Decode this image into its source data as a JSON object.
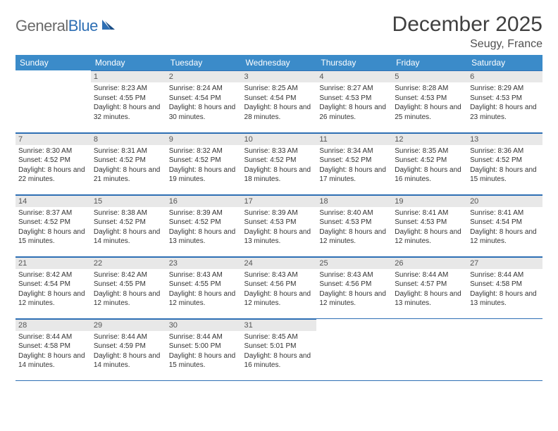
{
  "brand": {
    "part1": "General",
    "part2": "Blue"
  },
  "title": "December 2025",
  "location": "Seugy, France",
  "colors": {
    "header_bg": "#3b8bc9",
    "rule": "#2e6fb4",
    "daynum_bg": "#e8e8e8",
    "text": "#333333",
    "logo_gray": "#6a6a6a",
    "logo_blue": "#2e6fb4"
  },
  "columns": [
    "Sunday",
    "Monday",
    "Tuesday",
    "Wednesday",
    "Thursday",
    "Friday",
    "Saturday"
  ],
  "weeks": [
    [
      null,
      {
        "n": "1",
        "sunrise": "8:23 AM",
        "sunset": "4:55 PM",
        "daylight": "8 hours and 32 minutes."
      },
      {
        "n": "2",
        "sunrise": "8:24 AM",
        "sunset": "4:54 PM",
        "daylight": "8 hours and 30 minutes."
      },
      {
        "n": "3",
        "sunrise": "8:25 AM",
        "sunset": "4:54 PM",
        "daylight": "8 hours and 28 minutes."
      },
      {
        "n": "4",
        "sunrise": "8:27 AM",
        "sunset": "4:53 PM",
        "daylight": "8 hours and 26 minutes."
      },
      {
        "n": "5",
        "sunrise": "8:28 AM",
        "sunset": "4:53 PM",
        "daylight": "8 hours and 25 minutes."
      },
      {
        "n": "6",
        "sunrise": "8:29 AM",
        "sunset": "4:53 PM",
        "daylight": "8 hours and 23 minutes."
      }
    ],
    [
      {
        "n": "7",
        "sunrise": "8:30 AM",
        "sunset": "4:52 PM",
        "daylight": "8 hours and 22 minutes."
      },
      {
        "n": "8",
        "sunrise": "8:31 AM",
        "sunset": "4:52 PM",
        "daylight": "8 hours and 21 minutes."
      },
      {
        "n": "9",
        "sunrise": "8:32 AM",
        "sunset": "4:52 PM",
        "daylight": "8 hours and 19 minutes."
      },
      {
        "n": "10",
        "sunrise": "8:33 AM",
        "sunset": "4:52 PM",
        "daylight": "8 hours and 18 minutes."
      },
      {
        "n": "11",
        "sunrise": "8:34 AM",
        "sunset": "4:52 PM",
        "daylight": "8 hours and 17 minutes."
      },
      {
        "n": "12",
        "sunrise": "8:35 AM",
        "sunset": "4:52 PM",
        "daylight": "8 hours and 16 minutes."
      },
      {
        "n": "13",
        "sunrise": "8:36 AM",
        "sunset": "4:52 PM",
        "daylight": "8 hours and 15 minutes."
      }
    ],
    [
      {
        "n": "14",
        "sunrise": "8:37 AM",
        "sunset": "4:52 PM",
        "daylight": "8 hours and 15 minutes."
      },
      {
        "n": "15",
        "sunrise": "8:38 AM",
        "sunset": "4:52 PM",
        "daylight": "8 hours and 14 minutes."
      },
      {
        "n": "16",
        "sunrise": "8:39 AM",
        "sunset": "4:52 PM",
        "daylight": "8 hours and 13 minutes."
      },
      {
        "n": "17",
        "sunrise": "8:39 AM",
        "sunset": "4:53 PM",
        "daylight": "8 hours and 13 minutes."
      },
      {
        "n": "18",
        "sunrise": "8:40 AM",
        "sunset": "4:53 PM",
        "daylight": "8 hours and 12 minutes."
      },
      {
        "n": "19",
        "sunrise": "8:41 AM",
        "sunset": "4:53 PM",
        "daylight": "8 hours and 12 minutes."
      },
      {
        "n": "20",
        "sunrise": "8:41 AM",
        "sunset": "4:54 PM",
        "daylight": "8 hours and 12 minutes."
      }
    ],
    [
      {
        "n": "21",
        "sunrise": "8:42 AM",
        "sunset": "4:54 PM",
        "daylight": "8 hours and 12 minutes."
      },
      {
        "n": "22",
        "sunrise": "8:42 AM",
        "sunset": "4:55 PM",
        "daylight": "8 hours and 12 minutes."
      },
      {
        "n": "23",
        "sunrise": "8:43 AM",
        "sunset": "4:55 PM",
        "daylight": "8 hours and 12 minutes."
      },
      {
        "n": "24",
        "sunrise": "8:43 AM",
        "sunset": "4:56 PM",
        "daylight": "8 hours and 12 minutes."
      },
      {
        "n": "25",
        "sunrise": "8:43 AM",
        "sunset": "4:56 PM",
        "daylight": "8 hours and 12 minutes."
      },
      {
        "n": "26",
        "sunrise": "8:44 AM",
        "sunset": "4:57 PM",
        "daylight": "8 hours and 13 minutes."
      },
      {
        "n": "27",
        "sunrise": "8:44 AM",
        "sunset": "4:58 PM",
        "daylight": "8 hours and 13 minutes."
      }
    ],
    [
      {
        "n": "28",
        "sunrise": "8:44 AM",
        "sunset": "4:58 PM",
        "daylight": "8 hours and 14 minutes."
      },
      {
        "n": "29",
        "sunrise": "8:44 AM",
        "sunset": "4:59 PM",
        "daylight": "8 hours and 14 minutes."
      },
      {
        "n": "30",
        "sunrise": "8:44 AM",
        "sunset": "5:00 PM",
        "daylight": "8 hours and 15 minutes."
      },
      {
        "n": "31",
        "sunrise": "8:45 AM",
        "sunset": "5:01 PM",
        "daylight": "8 hours and 16 minutes."
      },
      null,
      null,
      null
    ]
  ],
  "labels": {
    "sunrise": "Sunrise:",
    "sunset": "Sunset:",
    "daylight": "Daylight:"
  }
}
